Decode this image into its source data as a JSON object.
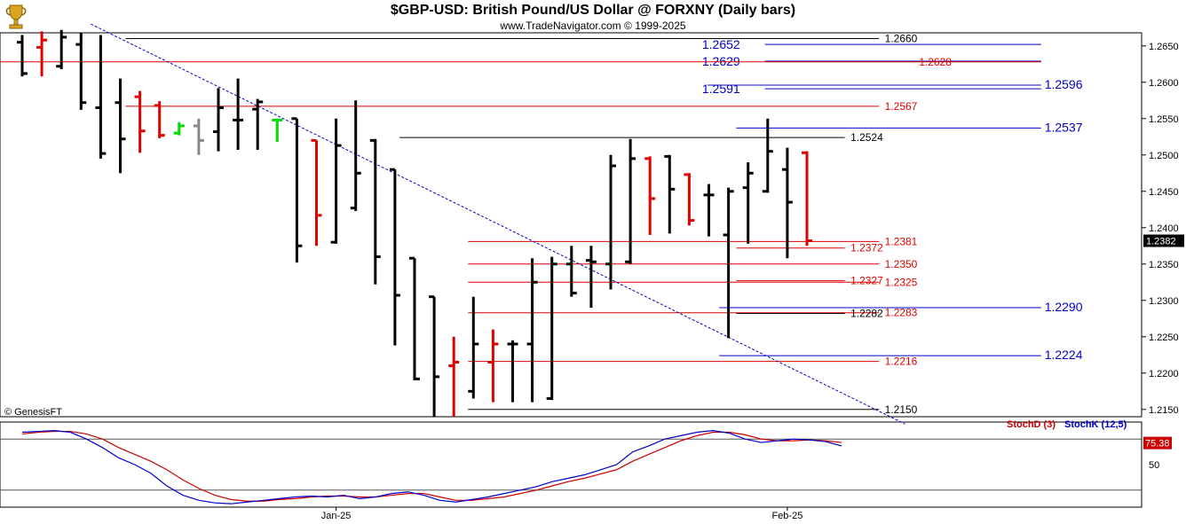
{
  "header": {
    "title": "$GBP-USD:  British Pound/US Dollar @ FORXNY  (Daily bars)",
    "subtitle": "www.TradeNavigator.com © 1999-2025",
    "copyright": "© GenesisFT"
  },
  "colors": {
    "up_bar": "#000000",
    "down_bar": "#e00000",
    "green_bar": "#00dd00",
    "gray_bar": "#888888",
    "red_level": "#dd0000",
    "blue_level": "#0000cc",
    "black_level": "#000000",
    "trendline": "#0000cc",
    "stoch_d": "#cc0000",
    "stoch_k": "#0000cc",
    "stoch_d_label": "#cc0000",
    "stoch_k_label": "#0000cc"
  },
  "chart_data": {
    "type": "ohlc",
    "y_range": [
      2.214,
      2.266
    ],
    "y_ticks": [
      "1.2650",
      "1.2600",
      "1.2550",
      "1.2500",
      "1.2450",
      "1.2400",
      "1.2350",
      "1.2300",
      "1.2250",
      "1.2200",
      "1.2150"
    ],
    "y_tick_values": [
      1.265,
      1.26,
      1.255,
      1.25,
      1.245,
      1.24,
      1.235,
      1.23,
      1.225,
      1.22,
      1.215
    ],
    "last_price": "1.2382",
    "x_ticks": [
      {
        "label": "Jan-25",
        "bar": 16
      },
      {
        "label": "Feb-25",
        "bar": 39
      }
    ],
    "bars": [
      {
        "o": 1.2655,
        "h": 1.2665,
        "l": 1.2608,
        "c": 1.2612,
        "color": "up"
      },
      {
        "o": 1.2648,
        "h": 1.267,
        "l": 1.2608,
        "c": 1.2658,
        "color": "down"
      },
      {
        "o": 1.2622,
        "h": 1.2672,
        "l": 1.2618,
        "c": 1.2662,
        "color": "up"
      },
      {
        "o": 1.2652,
        "h": 1.2668,
        "l": 1.2562,
        "c": 1.2572,
        "color": "up"
      },
      {
        "o": 1.2565,
        "h": 1.2665,
        "l": 1.2495,
        "c": 1.2502,
        "color": "up"
      },
      {
        "o": 1.2572,
        "h": 1.2605,
        "l": 1.2475,
        "c": 1.2522,
        "color": "up"
      },
      {
        "o": 1.258,
        "h": 1.2588,
        "l": 1.2503,
        "c": 1.2533,
        "color": "down"
      },
      {
        "o": 1.2568,
        "h": 1.2574,
        "l": 1.2523,
        "c": 1.2527,
        "color": "down"
      },
      {
        "o": 1.253,
        "h": 1.2545,
        "l": 1.2527,
        "c": 1.254,
        "color": "green"
      },
      {
        "o": 1.254,
        "h": 1.255,
        "l": 1.25,
        "c": 1.252,
        "color": "gray"
      },
      {
        "o": 1.2532,
        "h": 1.2592,
        "l": 1.2505,
        "c": 1.2565,
        "color": "up"
      },
      {
        "o": 1.2548,
        "h": 1.2605,
        "l": 1.2507,
        "c": 1.2548,
        "color": "up"
      },
      {
        "o": 1.2563,
        "h": 1.2577,
        "l": 1.2507,
        "c": 1.2573,
        "color": "up"
      },
      {
        "o": 1.2548,
        "h": 1.255,
        "l": 1.2518,
        "c": 1.2548,
        "color": "green"
      },
      {
        "o": 1.255,
        "h": 1.255,
        "l": 1.2352,
        "c": 1.2375,
        "color": "up"
      },
      {
        "o": 1.252,
        "h": 1.252,
        "l": 1.2375,
        "c": 1.2417,
        "color": "down"
      },
      {
        "o": 1.238,
        "h": 1.255,
        "l": 1.2378,
        "c": 1.2513,
        "color": "up"
      },
      {
        "o": 1.2427,
        "h": 1.2575,
        "l": 1.2423,
        "c": 1.2475,
        "color": "up"
      },
      {
        "o": 1.252,
        "h": 1.2522,
        "l": 1.2322,
        "c": 1.236,
        "color": "up"
      },
      {
        "o": 1.248,
        "h": 1.248,
        "l": 1.2238,
        "c": 1.2307,
        "color": "up"
      },
      {
        "o": 1.2358,
        "h": 1.2358,
        "l": 1.219,
        "c": 1.2192,
        "color": "up"
      },
      {
        "o": 1.2305,
        "h": 1.2305,
        "l": 1.214,
        "c": 1.2195,
        "color": "up"
      },
      {
        "o": 1.221,
        "h": 1.225,
        "l": 1.214,
        "c": 1.2215,
        "color": "down"
      },
      {
        "o": 1.2175,
        "h": 1.2305,
        "l": 1.2165,
        "c": 1.224,
        "color": "up"
      },
      {
        "o": 1.2215,
        "h": 1.226,
        "l": 1.216,
        "c": 1.224,
        "color": "down"
      },
      {
        "o": 1.224,
        "h": 1.2245,
        "l": 1.216,
        "c": 1.224,
        "color": "up"
      },
      {
        "o": 1.224,
        "h": 1.2358,
        "l": 1.216,
        "c": 1.2325,
        "color": "up"
      },
      {
        "o": 1.2165,
        "h": 1.236,
        "l": 1.2163,
        "c": 1.235,
        "color": "up"
      },
      {
        "o": 1.235,
        "h": 1.2375,
        "l": 1.2305,
        "c": 1.231,
        "color": "up"
      },
      {
        "o": 1.2355,
        "h": 1.2375,
        "l": 1.229,
        "c": 1.2353,
        "color": "up"
      },
      {
        "o": 1.235,
        "h": 1.25,
        "l": 1.2315,
        "c": 1.2485,
        "color": "up"
      },
      {
        "o": 1.2353,
        "h": 1.2522,
        "l": 1.235,
        "c": 1.2495,
        "color": "up"
      },
      {
        "o": 1.2495,
        "h": 1.2498,
        "l": 1.239,
        "c": 1.244,
        "color": "down"
      },
      {
        "o": 1.2498,
        "h": 1.25,
        "l": 1.2392,
        "c": 1.2453,
        "color": "up"
      },
      {
        "o": 1.2473,
        "h": 1.2475,
        "l": 1.2403,
        "c": 1.241,
        "color": "down"
      },
      {
        "o": 1.2445,
        "h": 1.246,
        "l": 1.2388,
        "c": 1.2445,
        "color": "up"
      },
      {
        "o": 1.239,
        "h": 1.2455,
        "l": 1.2248,
        "c": 1.245,
        "color": "up"
      },
      {
        "o": 1.2455,
        "h": 1.249,
        "l": 1.2378,
        "c": 1.2475,
        "color": "up"
      },
      {
        "o": 1.245,
        "h": 1.255,
        "l": 1.2448,
        "c": 1.2505,
        "color": "up"
      },
      {
        "o": 1.248,
        "h": 1.251,
        "l": 1.2358,
        "c": 1.2435,
        "color": "up"
      },
      {
        "o": 1.2503,
        "h": 1.2505,
        "l": 1.2375,
        "c": 1.2382,
        "color": "down"
      }
    ],
    "levels": [
      {
        "label": "1.2660",
        "value": 1.266,
        "color": "black",
        "x0": 0.11,
        "x1": 0.77,
        "lx": 0.775,
        "big": false
      },
      {
        "label": "1.2652",
        "value": 1.2652,
        "color": "blue",
        "x0": 0.62,
        "x1": 0.912,
        "lx": 0.615,
        "big": true,
        "tag_left": true
      },
      {
        "label": "1.2629",
        "value": 1.2629,
        "color": "blue",
        "x0": 0.62,
        "x1": 0.912,
        "lx": 0.615,
        "big": true,
        "tag_left": true
      },
      {
        "label": "1.2628",
        "value": 1.2628,
        "color": "red",
        "x0": 0.0,
        "x1": 0.912,
        "lx": 0.805,
        "big": false
      },
      {
        "label": "1.2596",
        "value": 1.2596,
        "color": "blue",
        "x0": 0.62,
        "x1": 0.912,
        "lx": 0.915,
        "big": true
      },
      {
        "label": "1.2591",
        "value": 1.2591,
        "color": "blue",
        "x0": 0.62,
        "x1": 0.912,
        "lx": 0.615,
        "big": true,
        "tag_left": true
      },
      {
        "label": "1.2567",
        "value": 1.2567,
        "color": "red",
        "x0": 0.11,
        "x1": 0.77,
        "lx": 0.775,
        "big": false
      },
      {
        "label": "1.2537",
        "value": 1.2537,
        "color": "blue",
        "x0": 0.645,
        "x1": 0.912,
        "lx": 0.915,
        "big": true
      },
      {
        "label": "1.2524",
        "value": 1.2524,
        "color": "black",
        "x0": 0.35,
        "x1": 0.74,
        "lx": 0.745,
        "big": false
      },
      {
        "label": "1.2381",
        "value": 1.2381,
        "color": "red",
        "x0": 0.41,
        "x1": 0.77,
        "lx": 0.775,
        "big": false
      },
      {
        "label": "1.2372",
        "value": 1.2372,
        "color": "red",
        "x0": 0.645,
        "x1": 0.74,
        "lx": 0.745,
        "big": false
      },
      {
        "label": "1.2350",
        "value": 1.235,
        "color": "red",
        "x0": 0.41,
        "x1": 0.77,
        "lx": 0.775,
        "big": false
      },
      {
        "label": "1.2327",
        "value": 1.2327,
        "color": "red",
        "x0": 0.645,
        "x1": 0.74,
        "lx": 0.745,
        "big": false
      },
      {
        "label": "1.2325",
        "value": 1.2325,
        "color": "red",
        "x0": 0.41,
        "x1": 0.77,
        "lx": 0.775,
        "big": false
      },
      {
        "label": "1.2290",
        "value": 1.229,
        "color": "blue",
        "x0": 0.63,
        "x1": 0.912,
        "lx": 0.915,
        "big": true
      },
      {
        "label": "1.2283",
        "value": 1.2283,
        "color": "red",
        "x0": 0.41,
        "x1": 0.77,
        "lx": 0.775,
        "big": false
      },
      {
        "label": "1.2282",
        "value": 1.2282,
        "color": "black",
        "x0": 0.645,
        "x1": 0.74,
        "lx": 0.745,
        "big": false
      },
      {
        "label": "1.2224",
        "value": 1.2224,
        "color": "blue",
        "x0": 0.63,
        "x1": 0.912,
        "lx": 0.915,
        "big": true
      },
      {
        "label": "1.2216",
        "value": 1.2216,
        "color": "red",
        "x0": 0.41,
        "x1": 0.77,
        "lx": 0.775,
        "big": false
      },
      {
        "label": "1.2150",
        "value": 1.215,
        "color": "black",
        "x0": 0.41,
        "x1": 0.77,
        "lx": 0.775,
        "big": false
      }
    ],
    "trendline": [
      {
        "bar": 3.5,
        "v": 1.268
      },
      {
        "bar": 45,
        "v": 1.213
      }
    ],
    "stochastic": {
      "labels": {
        "d": "StochD (3)",
        "k": "StochK (12,5)"
      },
      "current": "75.38",
      "ticks": [
        "50"
      ],
      "tick_values": [
        50
      ],
      "ref_lines": [
        80,
        20
      ],
      "k": [
        88,
        89,
        90,
        88,
        80,
        70,
        58,
        50,
        40,
        25,
        14,
        8,
        5,
        4,
        6,
        8,
        10,
        12,
        13,
        12,
        14,
        10,
        12,
        16,
        18,
        14,
        8,
        6,
        9,
        12,
        16,
        20,
        24,
        30,
        34,
        38,
        44,
        50,
        65,
        72,
        80,
        84,
        88,
        90,
        87,
        80,
        76,
        78,
        80,
        79,
        77,
        72
      ],
      "d": [
        86,
        88,
        89,
        89,
        86,
        80,
        70,
        62,
        54,
        44,
        32,
        22,
        14,
        9,
        7,
        7,
        9,
        10,
        12,
        13,
        13,
        12,
        12,
        14,
        16,
        16,
        12,
        8,
        8,
        10,
        12,
        16,
        20,
        25,
        30,
        34,
        39,
        44,
        54,
        62,
        70,
        78,
        84,
        88,
        88,
        85,
        80,
        78,
        78,
        79,
        78,
        76
      ]
    }
  }
}
